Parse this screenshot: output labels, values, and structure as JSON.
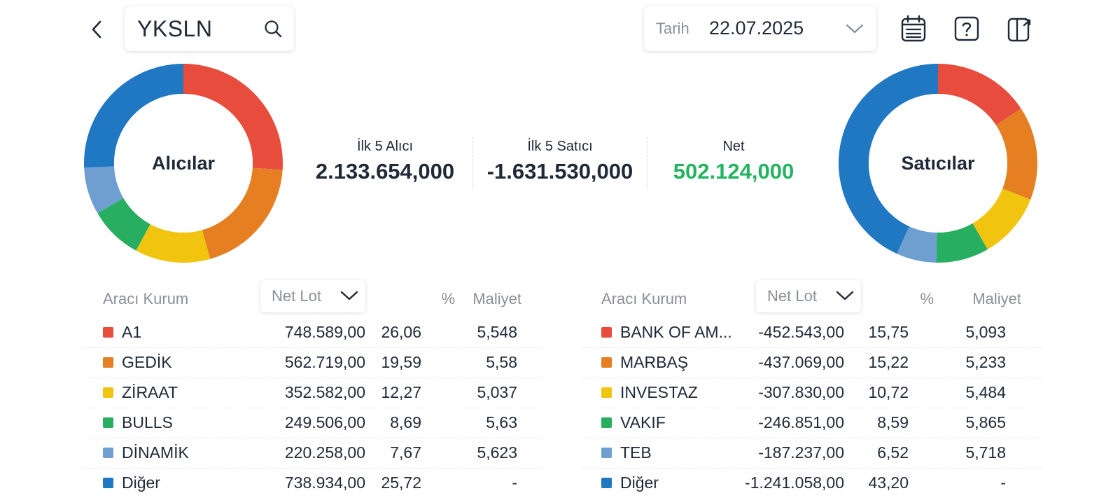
{
  "header": {
    "search_value": "YKSLN",
    "date_label": "Tarih",
    "date_value": "22.07.2025"
  },
  "buyers": {
    "title": "Alıcılar"
  },
  "sellers": {
    "title": "Satıcılar"
  },
  "summary": {
    "buyers_label": "İlk 5 Alıcı",
    "buyers_value": "2.133.654,000",
    "sellers_label": "İlk 5 Satıcı",
    "sellers_value": "-1.631.530,000",
    "net_label": "Net",
    "net_value": "502.124,000"
  },
  "columns": {
    "broker": "Aracı Kurum",
    "net_lot": "Net Lot",
    "pct": "%",
    "cost": "Maliyet"
  },
  "colors": [
    "#e74c3c",
    "#e67e22",
    "#f1c40f",
    "#27ae60",
    "#6f9fd1",
    "#1f78c1"
  ],
  "buyer_rows": [
    {
      "name": "A1",
      "lot": "748.589,00",
      "pct": "26,06",
      "cost": "5,548"
    },
    {
      "name": "GEDİK",
      "lot": "562.719,00",
      "pct": "19,59",
      "cost": "5,58"
    },
    {
      "name": "ZİRAAT",
      "lot": "352.582,00",
      "pct": "12,27",
      "cost": "5,037"
    },
    {
      "name": "BULLS",
      "lot": "249.506,00",
      "pct": "8,69",
      "cost": "5,63"
    },
    {
      "name": "DİNAMİK",
      "lot": "220.258,00",
      "pct": "7,67",
      "cost": "5,623"
    },
    {
      "name": "Diğer",
      "lot": "738.934,00",
      "pct": "25,72",
      "cost": "-"
    }
  ],
  "seller_rows": [
    {
      "name": "BANK OF AM...",
      "lot": "-452.543,00",
      "pct": "15,75",
      "cost": "5,093"
    },
    {
      "name": "MARBAŞ",
      "lot": "-437.069,00",
      "pct": "15,22",
      "cost": "5,233"
    },
    {
      "name": "INVESTAZ",
      "lot": "-307.830,00",
      "pct": "10,72",
      "cost": "5,484"
    },
    {
      "name": "VAKIF",
      "lot": "-246.851,00",
      "pct": "8,59",
      "cost": "5,865"
    },
    {
      "name": "TEB",
      "lot": "-187.237,00",
      "pct": "6,52",
      "cost": "5,718"
    },
    {
      "name": "Diğer",
      "lot": "-1.241.058,00",
      "pct": "43,20",
      "cost": "-"
    }
  ]
}
